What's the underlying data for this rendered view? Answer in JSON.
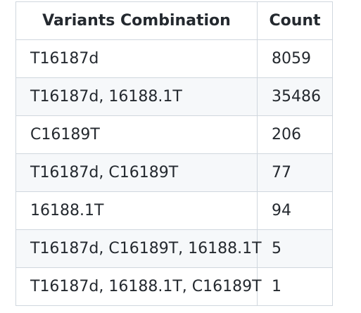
{
  "table": {
    "headers": [
      "Variants Combination",
      "Count"
    ],
    "rows": [
      [
        "T16187d",
        "8059"
      ],
      [
        "T16187d, 16188.1T",
        "35486"
      ],
      [
        "C16189T",
        "206"
      ],
      [
        "T16187d, C16189T",
        "77"
      ],
      [
        "16188.1T",
        "94"
      ],
      [
        "T16187d, C16189T, 16188.1T",
        "5"
      ],
      [
        "T16187d, 16188.1T, C16189T",
        "1"
      ]
    ]
  }
}
